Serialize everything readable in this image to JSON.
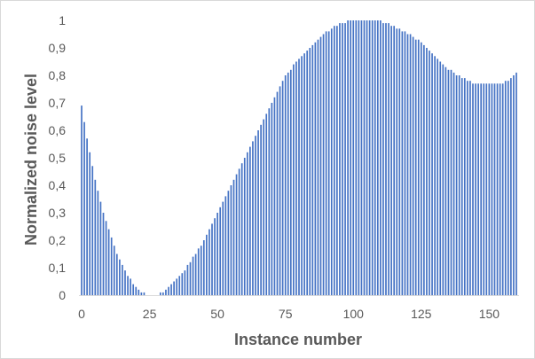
{
  "chart_data": {
    "type": "bar",
    "title": "",
    "xlabel": "Instance number",
    "ylabel": "Normalized noise level",
    "xlim": [
      0,
      160
    ],
    "ylim": [
      0,
      1
    ],
    "x_ticks": [
      "0",
      "25",
      "50",
      "75",
      "100",
      "125",
      "150"
    ],
    "y_ticks": [
      "0",
      "0,1",
      "0,2",
      "0,3",
      "0,4",
      "0,5",
      "0,6",
      "0,7",
      "0,8",
      "0,9",
      "1"
    ],
    "grid": false,
    "legend": "none",
    "bar_color": "#4472C4",
    "x": [
      0,
      1,
      2,
      3,
      4,
      5,
      6,
      7,
      8,
      9,
      10,
      11,
      12,
      13,
      14,
      15,
      16,
      17,
      18,
      19,
      20,
      21,
      22,
      23,
      24,
      25,
      26,
      27,
      28,
      29,
      30,
      31,
      32,
      33,
      34,
      35,
      36,
      37,
      38,
      39,
      40,
      41,
      42,
      43,
      44,
      45,
      46,
      47,
      48,
      49,
      50,
      51,
      52,
      53,
      54,
      55,
      56,
      57,
      58,
      59,
      60,
      61,
      62,
      63,
      64,
      65,
      66,
      67,
      68,
      69,
      70,
      71,
      72,
      73,
      74,
      75,
      76,
      77,
      78,
      79,
      80,
      81,
      82,
      83,
      84,
      85,
      86,
      87,
      88,
      89,
      90,
      91,
      92,
      93,
      94,
      95,
      96,
      97,
      98,
      99,
      100,
      101,
      102,
      103,
      104,
      105,
      106,
      107,
      108,
      109,
      110,
      111,
      112,
      113,
      114,
      115,
      116,
      117,
      118,
      119,
      120,
      121,
      122,
      123,
      124,
      125,
      126,
      127,
      128,
      129,
      130,
      131,
      132,
      133,
      134,
      135,
      136,
      137,
      138,
      139,
      140,
      141,
      142,
      143,
      144,
      145,
      146,
      147,
      148,
      149,
      150,
      151,
      152,
      153,
      154,
      155,
      156,
      157,
      158,
      159,
      160
    ],
    "values": [
      0.69,
      0.63,
      0.57,
      0.52,
      0.47,
      0.42,
      0.38,
      0.34,
      0.3,
      0.27,
      0.24,
      0.21,
      0.18,
      0.15,
      0.13,
      0.11,
      0.09,
      0.07,
      0.06,
      0.04,
      0.03,
      0.02,
      0.01,
      0.01,
      0.0,
      0.0,
      0.0,
      0.0,
      0.0,
      0.01,
      0.01,
      0.02,
      0.03,
      0.04,
      0.05,
      0.06,
      0.07,
      0.08,
      0.09,
      0.11,
      0.12,
      0.14,
      0.15,
      0.17,
      0.18,
      0.2,
      0.22,
      0.24,
      0.26,
      0.28,
      0.3,
      0.32,
      0.34,
      0.36,
      0.38,
      0.4,
      0.42,
      0.44,
      0.46,
      0.48,
      0.5,
      0.52,
      0.54,
      0.56,
      0.58,
      0.6,
      0.62,
      0.64,
      0.66,
      0.68,
      0.7,
      0.72,
      0.74,
      0.76,
      0.78,
      0.8,
      0.81,
      0.82,
      0.84,
      0.85,
      0.86,
      0.87,
      0.88,
      0.89,
      0.9,
      0.91,
      0.92,
      0.93,
      0.94,
      0.95,
      0.96,
      0.96,
      0.97,
      0.98,
      0.98,
      0.99,
      0.99,
      0.99,
      1.0,
      1.0,
      1.0,
      1.0,
      1.0,
      1.0,
      1.0,
      1.0,
      1.0,
      1.0,
      1.0,
      1.0,
      1.0,
      0.99,
      0.99,
      0.99,
      0.98,
      0.98,
      0.97,
      0.97,
      0.96,
      0.96,
      0.95,
      0.95,
      0.94,
      0.93,
      0.93,
      0.92,
      0.91,
      0.9,
      0.89,
      0.88,
      0.87,
      0.86,
      0.85,
      0.84,
      0.83,
      0.82,
      0.82,
      0.81,
      0.8,
      0.8,
      0.79,
      0.79,
      0.78,
      0.78,
      0.77,
      0.77,
      0.77,
      0.77,
      0.77,
      0.77,
      0.77,
      0.77,
      0.77,
      0.77,
      0.77,
      0.77,
      0.78,
      0.78,
      0.79,
      0.8,
      0.81
    ]
  }
}
